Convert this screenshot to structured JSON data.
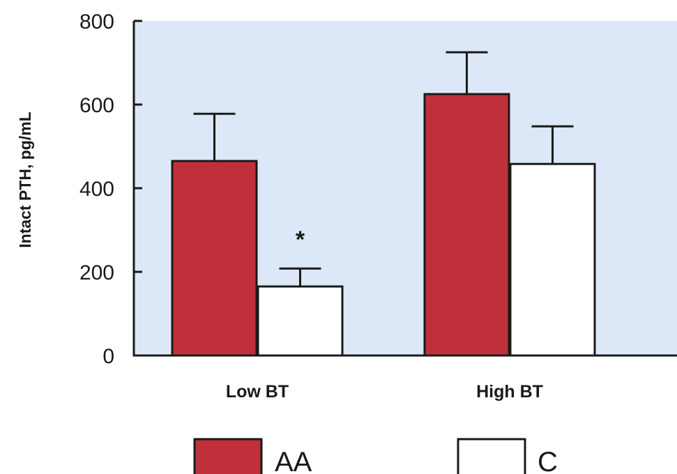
{
  "chart_data": {
    "type": "bar",
    "title": "",
    "xlabel": "",
    "ylabel": "Intact PTH, pg/mL",
    "ylim": [
      0,
      800
    ],
    "yticks": [
      0,
      200,
      400,
      600,
      800
    ],
    "categories": [
      "Low BT",
      "High BT"
    ],
    "series": [
      {
        "name": "AA",
        "color": "#c0303a",
        "values": [
          465,
          625
        ],
        "errors": [
          113,
          100
        ]
      },
      {
        "name": "C",
        "color": "#ffffff",
        "values": [
          165,
          458
        ],
        "errors": [
          43,
          90
        ]
      }
    ],
    "annotations": [
      {
        "text": "*",
        "category_index": 0,
        "series_index": 1
      }
    ],
    "plot_background": "#dce7f7",
    "grid": false,
    "legend_position": "bottom"
  }
}
